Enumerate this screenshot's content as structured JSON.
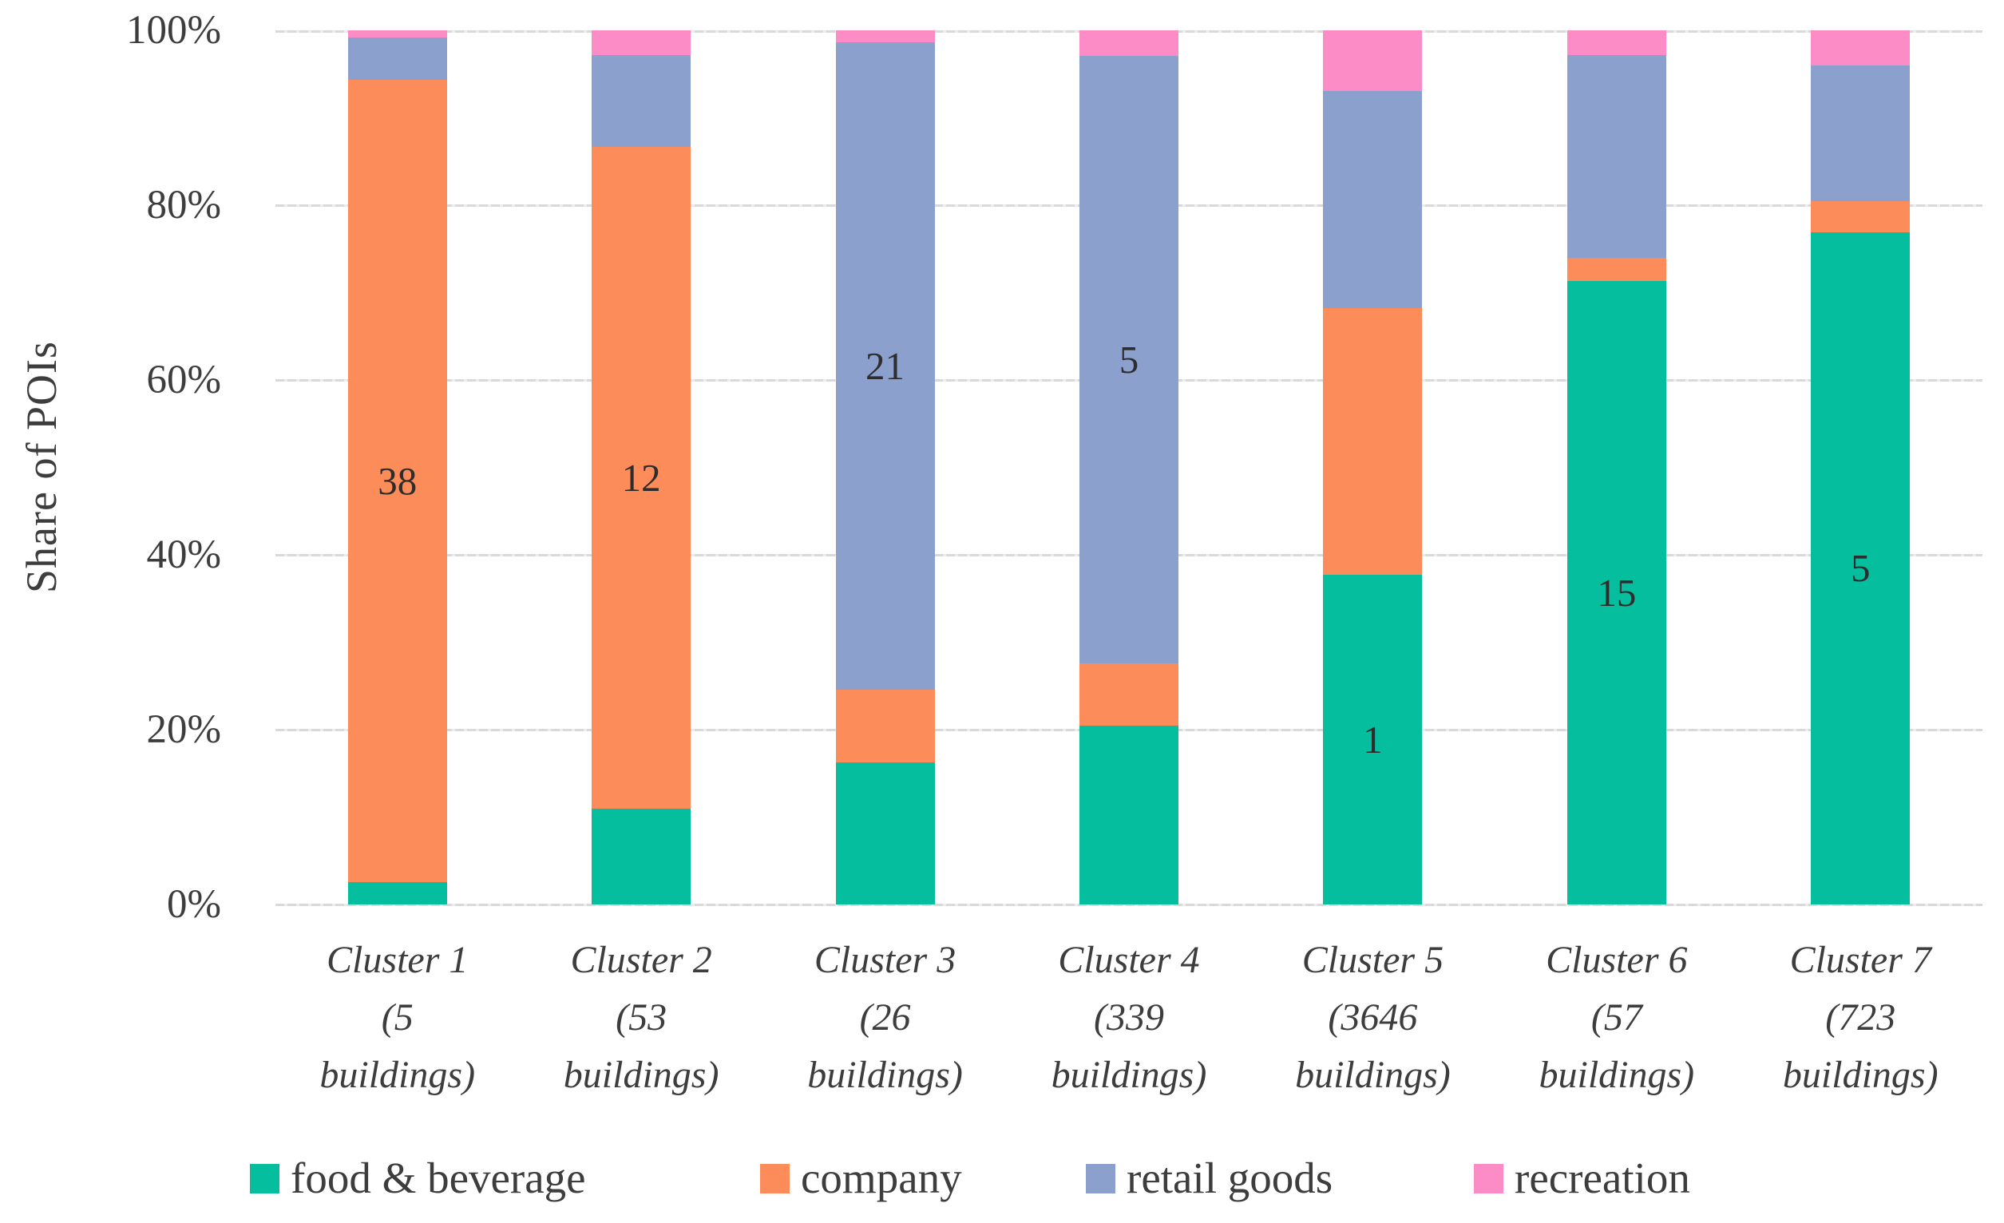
{
  "y_axis": {
    "title": "Share of POIs",
    "ticks": [
      {
        "value": 100,
        "label": "100%"
      },
      {
        "value": 80,
        "label": "80%"
      },
      {
        "value": 60,
        "label": "60%"
      },
      {
        "value": 40,
        "label": "40%"
      },
      {
        "value": 20,
        "label": "20%"
      },
      {
        "value": 0,
        "label": "0%"
      }
    ]
  },
  "legend": [
    {
      "label": "food & beverage",
      "color": "#04BE9E"
    },
    {
      "label": "company",
      "color": "#FC8D5B"
    },
    {
      "label": "retail goods",
      "color": "#8BA0CD"
    },
    {
      "label": "recreation",
      "color": "#FB8CC6"
    }
  ],
  "chart_data": {
    "type": "bar",
    "stacked": true,
    "units": "percent share of POIs",
    "title": "",
    "xlabel": "",
    "ylabel": "Share of POIs",
    "ylim": [
      0,
      100
    ],
    "gridlines": [
      0,
      20,
      40,
      60,
      80,
      100
    ],
    "legend_position": "bottom",
    "categories": [
      "Cluster 1\n(5\nbuildings)",
      "Cluster 2\n(53\nbuildings)",
      "Cluster 3\n(26\nbuildings)",
      "Cluster 4\n(339\nbuildings)",
      "Cluster 5\n(3646\nbuildings)",
      "Cluster 6\n(57\nbuildings)",
      "Cluster 7\n(723\nbuildings)"
    ],
    "series": [
      {
        "name": "food & beverage",
        "color": "#04BE9E",
        "values": [
          2.6,
          11.0,
          16.3,
          20.5,
          37.7,
          71.3,
          76.9
        ]
      },
      {
        "name": "company",
        "color": "#FC8D5B",
        "values": [
          91.7,
          75.7,
          8.3,
          7.1,
          30.5,
          2.7,
          3.6
        ]
      },
      {
        "name": "retail goods",
        "color": "#8BA0CD",
        "values": [
          4.9,
          10.5,
          74.0,
          69.5,
          24.9,
          23.2,
          15.5
        ]
      },
      {
        "name": "recreation",
        "color": "#FB8CC6",
        "values": [
          0.8,
          2.8,
          1.4,
          2.9,
          6.9,
          2.8,
          4.0
        ]
      }
    ],
    "bar_value_labels": [
      {
        "category_index": 0,
        "series_index": 1,
        "text": "38"
      },
      {
        "category_index": 1,
        "series_index": 1,
        "text": "12"
      },
      {
        "category_index": 2,
        "series_index": 2,
        "text": "21"
      },
      {
        "category_index": 3,
        "series_index": 2,
        "text": "5"
      },
      {
        "category_index": 4,
        "series_index": 0,
        "text": "1"
      },
      {
        "category_index": 5,
        "series_index": 0,
        "text": "15"
      },
      {
        "category_index": 6,
        "series_index": 0,
        "text": "5"
      }
    ]
  },
  "colors": {
    "grid": "#d9d9d9",
    "axis_text": "#3d3d3d",
    "bar_label_text": "#2d2d2d",
    "background": "#ffffff"
  }
}
